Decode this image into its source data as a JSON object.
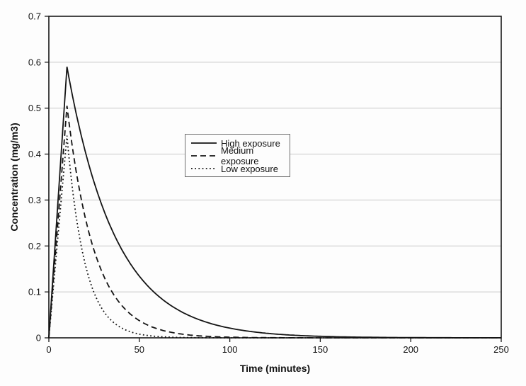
{
  "chart_data": {
    "type": "line",
    "title": "",
    "xlabel": "Time (minutes)",
    "ylabel": "Concentration (mg/m3)",
    "xlim": [
      0,
      250
    ],
    "ylim": [
      0,
      0.7
    ],
    "x_ticks": [
      0,
      50,
      100,
      150,
      200,
      250
    ],
    "x_tick_labels": [
      "0",
      "50",
      "100",
      "150",
      "200",
      "250"
    ],
    "y_ticks": [
      0,
      0.1,
      0.2,
      0.3,
      0.4,
      0.5,
      0.6,
      0.7
    ],
    "y_tick_labels": [
      "0",
      "0.1",
      "0.2",
      "0.3",
      "0.4",
      "0.5",
      "0.6",
      "0.7"
    ],
    "grid": "horizontal",
    "legend_position": "inside-upper-left",
    "line_color": "#141414",
    "grid_color": "#c9c9c9",
    "axis_color": "#1a1a1a",
    "series": [
      {
        "name": "High exposure",
        "line_style": "solid",
        "model": {
          "start": [
            0,
            0
          ],
          "peak_time": 10,
          "peak": 0.59,
          "decay_rate_per_min": 0.037
        },
        "points": [
          [
            0,
            0
          ],
          [
            10,
            0.59
          ],
          [
            20,
            0.41
          ],
          [
            30,
            0.28
          ],
          [
            40,
            0.19
          ],
          [
            50,
            0.13
          ],
          [
            60,
            0.09
          ],
          [
            80,
            0.044
          ],
          [
            100,
            0.021
          ],
          [
            125,
            0.008
          ],
          [
            150,
            0.003
          ],
          [
            200,
            0.001
          ],
          [
            250,
            0
          ]
        ]
      },
      {
        "name": "Medium exposure",
        "line_style": "dashed",
        "model": {
          "start": [
            0,
            0
          ],
          "peak_time": 10,
          "peak": 0.505,
          "decay_rate_per_min": 0.065
        },
        "points": [
          [
            0,
            0
          ],
          [
            10,
            0.505
          ],
          [
            20,
            0.26
          ],
          [
            30,
            0.14
          ],
          [
            40,
            0.07
          ],
          [
            50,
            0.037
          ],
          [
            60,
            0.02
          ],
          [
            80,
            0.005
          ],
          [
            100,
            0.001
          ],
          [
            150,
            0
          ],
          [
            250,
            0
          ]
        ]
      },
      {
        "name": "Low exposure",
        "line_style": "dotted",
        "model": {
          "start": [
            0,
            0
          ],
          "peak_time": 10,
          "peak": 0.44,
          "decay_rate_per_min": 0.1
        },
        "points": [
          [
            0,
            0
          ],
          [
            10,
            0.44
          ],
          [
            20,
            0.16
          ],
          [
            30,
            0.06
          ],
          [
            40,
            0.022
          ],
          [
            50,
            0.008
          ],
          [
            60,
            0.003
          ],
          [
            80,
            0.001
          ],
          [
            100,
            0
          ],
          [
            250,
            0
          ]
        ]
      }
    ]
  }
}
